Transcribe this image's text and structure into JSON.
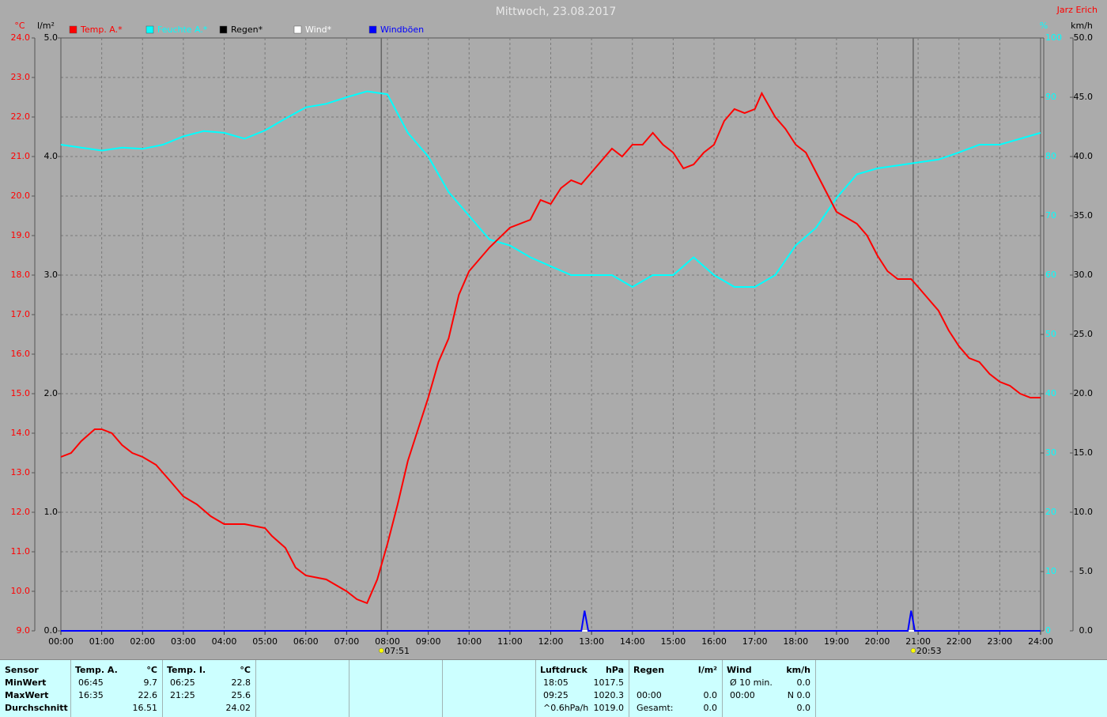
{
  "chart_data": {
    "type": "line",
    "title": "Mittwoch, 23.08.2017",
    "author": "Jarz Erich",
    "grid": true,
    "xlim": [
      0,
      24
    ],
    "xticks": [
      {
        "value": 0,
        "label": "00:00"
      },
      {
        "value": 1,
        "label": "01:00"
      },
      {
        "value": 2,
        "label": "02:00"
      },
      {
        "value": 3,
        "label": "03:00"
      },
      {
        "value": 4,
        "label": "04:00"
      },
      {
        "value": 5,
        "label": "05:00"
      },
      {
        "value": 6,
        "label": "06:00"
      },
      {
        "value": 7,
        "label": "07:00"
      },
      {
        "value": 8,
        "label": "08:00"
      },
      {
        "value": 9,
        "label": "09:00"
      },
      {
        "value": 10,
        "label": "10:00"
      },
      {
        "value": 11,
        "label": "11:00"
      },
      {
        "value": 12,
        "label": "12:00"
      },
      {
        "value": 13,
        "label": "13:00"
      },
      {
        "value": 14,
        "label": "14:00"
      },
      {
        "value": 15,
        "label": "15:00"
      },
      {
        "value": 16,
        "label": "16:00"
      },
      {
        "value": 17,
        "label": "17:00"
      },
      {
        "value": 18,
        "label": "18:00"
      },
      {
        "value": 19,
        "label": "19:00"
      },
      {
        "value": 20,
        "label": "20:00"
      },
      {
        "value": 21,
        "label": "21:00"
      },
      {
        "value": 22,
        "label": "22:00"
      },
      {
        "value": 23,
        "label": "23:00"
      },
      {
        "value": 24,
        "label": "24:00"
      }
    ],
    "y_unit": "°C",
    "ylim": [
      9,
      24
    ],
    "yticks": [
      {
        "value": 9,
        "label": "9.0"
      },
      {
        "value": 10,
        "label": "10.0"
      },
      {
        "value": 11,
        "label": "11.0"
      },
      {
        "value": 12,
        "label": "12.0"
      },
      {
        "value": 13,
        "label": "13.0"
      },
      {
        "value": 14,
        "label": "14.0"
      },
      {
        "value": 15,
        "label": "15.0"
      },
      {
        "value": 16,
        "label": "16.0"
      },
      {
        "value": 17,
        "label": "17.0"
      },
      {
        "value": 18,
        "label": "18.0"
      },
      {
        "value": 19,
        "label": "19.0"
      },
      {
        "value": 20,
        "label": "20.0"
      },
      {
        "value": 21,
        "label": "21.0"
      },
      {
        "value": 22,
        "label": "22.0"
      },
      {
        "value": 23,
        "label": "23.0"
      },
      {
        "value": 24,
        "label": "24.0"
      }
    ],
    "y2_unit": "%",
    "y2lim": [
      0,
      100
    ],
    "y2ticks": [
      0,
      10,
      20,
      30,
      40,
      50,
      60,
      70,
      80,
      90,
      100
    ],
    "y3_unit": "l/m²",
    "y3lim": [
      0,
      5
    ],
    "y3ticks": [
      {
        "value": 0,
        "label": "0.0"
      },
      {
        "value": 1,
        "label": "1.0"
      },
      {
        "value": 2,
        "label": "2.0"
      },
      {
        "value": 3,
        "label": "3.0"
      },
      {
        "value": 4,
        "label": "4.0"
      },
      {
        "value": 5,
        "label": "5.0"
      }
    ],
    "y4_unit": "km/h",
    "y4lim": [
      0,
      50
    ],
    "y4ticks": [
      {
        "value": 0,
        "label": "0.0"
      },
      {
        "value": 5,
        "label": "5.0"
      },
      {
        "value": 10,
        "label": "10.0"
      },
      {
        "value": 15,
        "label": "15.0"
      },
      {
        "value": 20,
        "label": "20.0"
      },
      {
        "value": 25,
        "label": "25.0"
      },
      {
        "value": 30,
        "label": "30.0"
      },
      {
        "value": 35,
        "label": "35.0"
      },
      {
        "value": 40,
        "label": "40.0"
      },
      {
        "value": 45,
        "label": "45.0"
      },
      {
        "value": 50,
        "label": "50.0"
      }
    ],
    "series": [
      {
        "name": "Temp. A.*",
        "color": "#ff0000",
        "axis": "y",
        "x": [
          0,
          0.25,
          0.5,
          0.83,
          1,
          1.25,
          1.5,
          1.75,
          2,
          2.33,
          2.67,
          3,
          3.33,
          3.67,
          4,
          4.5,
          5,
          5.17,
          5.5,
          5.75,
          6,
          6.5,
          7,
          7.25,
          7.5,
          7.75,
          8,
          8.25,
          8.5,
          8.75,
          9,
          9.25,
          9.5,
          9.75,
          10,
          10.5,
          11,
          11.5,
          11.75,
          12,
          12.25,
          12.5,
          12.75,
          13,
          13.25,
          13.5,
          13.75,
          14,
          14.25,
          14.5,
          14.75,
          15,
          15.25,
          15.5,
          15.75,
          16,
          16.25,
          16.5,
          16.75,
          17,
          17.17,
          17.5,
          17.75,
          18,
          18.25,
          18.5,
          18.75,
          19,
          19.5,
          19.75,
          20,
          20.25,
          20.5,
          20.83,
          21,
          21.25,
          21.5,
          21.75,
          22,
          22.25,
          22.5,
          22.75,
          23,
          23.25,
          23.5,
          23.75,
          24
        ],
        "values": [
          13.4,
          13.5,
          13.8,
          14.1,
          14.1,
          14.0,
          13.7,
          13.5,
          13.4,
          13.2,
          12.8,
          12.4,
          12.2,
          11.9,
          11.7,
          11.7,
          11.6,
          11.4,
          11.1,
          10.6,
          10.4,
          10.3,
          10.0,
          9.8,
          9.7,
          10.3,
          11.2,
          12.2,
          13.3,
          14.1,
          14.9,
          15.8,
          16.4,
          17.5,
          18.1,
          18.7,
          19.2,
          19.4,
          19.9,
          19.8,
          20.2,
          20.4,
          20.3,
          20.6,
          20.9,
          21.2,
          21.0,
          21.3,
          21.3,
          21.6,
          21.3,
          21.1,
          20.7,
          20.8,
          21.1,
          21.3,
          21.9,
          22.2,
          22.1,
          22.2,
          22.6,
          22.0,
          21.7,
          21.3,
          21.1,
          20.6,
          20.1,
          19.6,
          19.3,
          19.0,
          18.5,
          18.1,
          17.9,
          17.9,
          17.7,
          17.4,
          17.1,
          16.6,
          16.2,
          15.9,
          15.8,
          15.5,
          15.3,
          15.2,
          15.0,
          14.9,
          14.9
        ]
      },
      {
        "name": "Feuchte A.*",
        "color": "#00ffff",
        "axis": "y2",
        "x": [
          0,
          0.5,
          1,
          1.5,
          2,
          2.5,
          3,
          3.5,
          4,
          4.5,
          5,
          5.5,
          6,
          6.5,
          7,
          7.5,
          8,
          8.5,
          9,
          9.5,
          10,
          10.5,
          11,
          11.5,
          12,
          12.5,
          13,
          13.5,
          14,
          14.5,
          15,
          15.5,
          16,
          16.5,
          17,
          17.5,
          18,
          18.5,
          19,
          19.5,
          20,
          20.5,
          21,
          21.5,
          22,
          22.5,
          23,
          23.5,
          24
        ],
        "values": [
          82,
          81.5,
          81,
          81.5,
          81.3,
          82,
          83.4,
          84.3,
          84,
          83,
          84.4,
          86.4,
          88.3,
          88.9,
          90,
          91,
          90.5,
          84,
          80,
          74,
          70,
          66,
          65,
          63,
          61.5,
          60,
          60,
          60,
          58,
          60,
          60,
          63,
          60,
          58,
          58,
          60,
          65,
          68,
          73,
          77,
          78,
          78.5,
          79,
          79.5,
          80.7,
          82,
          82,
          83,
          84
        ]
      },
      {
        "name": "Regen*",
        "color": "#000000",
        "axis": "y3",
        "x": [
          0,
          24
        ],
        "values": [
          0,
          0
        ]
      },
      {
        "name": "Wind*",
        "color": "#ffffff",
        "axis": "y4",
        "x": [
          0,
          24
        ],
        "values": [
          0,
          0
        ]
      },
      {
        "name": "Windböen",
        "color": "#0000ff",
        "axis": "y4",
        "x": [
          0,
          12.75,
          12.83,
          12.92,
          20.75,
          20.83,
          20.92,
          24
        ],
        "values": [
          0,
          0,
          1.7,
          0,
          0,
          1.7,
          0,
          0
        ]
      }
    ],
    "annotations": [
      {
        "text": "07:51",
        "x": 7.85
      },
      {
        "text": "20:53",
        "x": 20.88
      }
    ]
  },
  "stats": {
    "sensor_header": "Sensor",
    "row_labels": [
      "MinWert",
      "MaxWert",
      "Durchschnitt"
    ],
    "groups": [
      {
        "header": "Temp. A.",
        "unit": "°C",
        "rows": [
          [
            "06:45",
            "9.7"
          ],
          [
            "16:35",
            "22.6"
          ],
          [
            "16.51"
          ]
        ]
      },
      {
        "header": "Temp. I.",
        "unit": "°C",
        "rows": [
          [
            "06:25",
            "22.8"
          ],
          [
            "21:25",
            "25.6"
          ],
          [
            "24.02"
          ]
        ]
      },
      {
        "header": "Luftdruck",
        "unit": "hPa",
        "rows": [
          [
            "18:05",
            "1017.5"
          ],
          [
            "09:25",
            "1020.3"
          ],
          [
            "^0.6hPa/h",
            "1019.0"
          ]
        ]
      },
      {
        "header": "Regen",
        "unit": "l/m²",
        "rows": [
          [],
          [
            "00:00",
            "0.0"
          ],
          [
            "Gesamt:",
            "0.0"
          ]
        ]
      },
      {
        "header": "Wind",
        "unit": "km/h",
        "rows": [
          [
            "Ø 10 min.",
            "0.0"
          ],
          [
            "00:00",
            "N 0.0"
          ],
          [
            "0.0"
          ]
        ]
      }
    ]
  }
}
